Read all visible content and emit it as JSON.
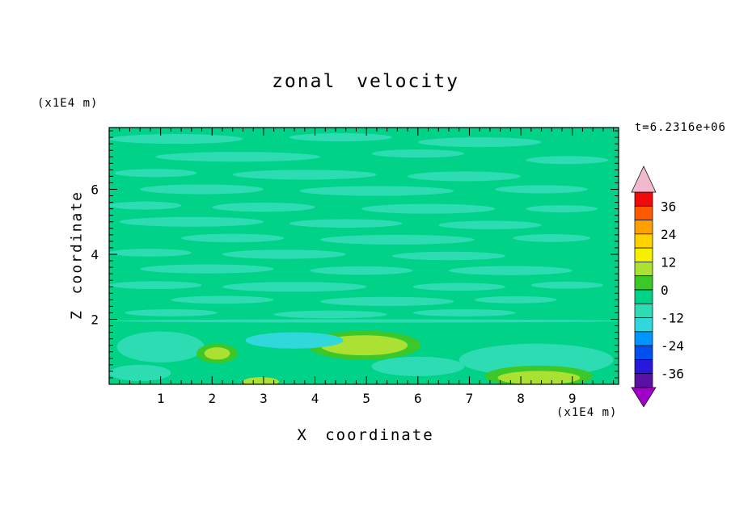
{
  "page": {
    "background": "#FFFFFF"
  },
  "chart_data": {
    "type": "filled_contour",
    "title": "zonal velocity",
    "timestamp": "t=6.2316e+06",
    "xlabel": "X coordinate",
    "ylabel": "Z coordinate",
    "x_axis_unit": "(x1E4 m)",
    "y_axis_unit": "(x1E4 m)",
    "x_range": [
      0,
      9.9
    ],
    "z_range": [
      0,
      7.9
    ],
    "x_major_ticks": [
      1,
      2,
      3,
      4,
      5,
      6,
      7,
      8,
      9
    ],
    "z_major_ticks": [
      2,
      4,
      6
    ],
    "minor_tick_step": 0.2,
    "colorbar": {
      "labels": [
        36,
        24,
        12,
        0,
        -12,
        -24,
        -36
      ],
      "level_min": -42,
      "level_max": 42,
      "level_step": 6,
      "over_color": "#F2B9CE",
      "under_color": "#A000C8",
      "segments": [
        {
          "from": 36,
          "to": 42,
          "color": "#F00A0A"
        },
        {
          "from": 30,
          "to": 36,
          "color": "#FF5A00"
        },
        {
          "from": 24,
          "to": 30,
          "color": "#FFA000"
        },
        {
          "from": 18,
          "to": 24,
          "color": "#FFD200"
        },
        {
          "from": 12,
          "to": 18,
          "color": "#F5F000"
        },
        {
          "from": 6,
          "to": 12,
          "color": "#AAE132"
        },
        {
          "from": 0,
          "to": 6,
          "color": "#3CC828"
        },
        {
          "from": -6,
          "to": 0,
          "color": "#00D287"
        },
        {
          "from": -12,
          "to": -6,
          "color": "#2EDCB4"
        },
        {
          "from": -18,
          "to": -12,
          "color": "#30D8DC"
        },
        {
          "from": -24,
          "to": -18,
          "color": "#0096FF"
        },
        {
          "from": -30,
          "to": -24,
          "color": "#0050F0"
        },
        {
          "from": -36,
          "to": -30,
          "color": "#2818DC"
        },
        {
          "from": -42,
          "to": -36,
          "color": "#5A0FA5"
        }
      ]
    },
    "field": {
      "base_value_band": "-6 to 0",
      "base_color": "#00D287",
      "features": [
        {
          "value_band": "-12 to -6",
          "color": "#2EDCB4",
          "shape": "ellipse",
          "blobs": [
            [
              1.3,
              7.55,
              2.6,
              0.3
            ],
            [
              4.5,
              7.6,
              2.0,
              0.25
            ],
            [
              7.2,
              7.45,
              2.4,
              0.3
            ],
            [
              2.5,
              7.0,
              3.2,
              0.3
            ],
            [
              6.0,
              7.1,
              1.8,
              0.25
            ],
            [
              8.9,
              6.9,
              1.6,
              0.25
            ],
            [
              0.9,
              6.5,
              1.6,
              0.25
            ],
            [
              3.8,
              6.45,
              2.8,
              0.3
            ],
            [
              6.9,
              6.4,
              2.2,
              0.3
            ],
            [
              1.8,
              6.0,
              2.4,
              0.3
            ],
            [
              5.2,
              5.95,
              3.0,
              0.3
            ],
            [
              8.4,
              6.0,
              1.8,
              0.25
            ],
            [
              0.7,
              5.5,
              1.4,
              0.25
            ],
            [
              3.0,
              5.45,
              2.0,
              0.28
            ],
            [
              6.2,
              5.4,
              2.6,
              0.3
            ],
            [
              8.8,
              5.4,
              1.4,
              0.22
            ],
            [
              1.6,
              5.0,
              2.8,
              0.3
            ],
            [
              4.6,
              4.95,
              2.2,
              0.26
            ],
            [
              7.4,
              4.9,
              2.0,
              0.26
            ],
            [
              2.4,
              4.5,
              2.0,
              0.26
            ],
            [
              5.6,
              4.45,
              3.0,
              0.3
            ],
            [
              8.6,
              4.5,
              1.5,
              0.24
            ],
            [
              0.8,
              4.05,
              1.6,
              0.24
            ],
            [
              3.4,
              4.0,
              2.4,
              0.28
            ],
            [
              6.6,
              3.95,
              2.2,
              0.26
            ],
            [
              1.9,
              3.55,
              2.6,
              0.28
            ],
            [
              4.9,
              3.5,
              2.0,
              0.26
            ],
            [
              7.8,
              3.5,
              2.4,
              0.28
            ],
            [
              0.9,
              3.05,
              1.8,
              0.24
            ],
            [
              3.6,
              3.0,
              2.8,
              0.3
            ],
            [
              6.8,
              3.0,
              1.8,
              0.24
            ],
            [
              8.9,
              3.05,
              1.4,
              0.22
            ],
            [
              2.2,
              2.6,
              2.0,
              0.24
            ],
            [
              5.4,
              2.55,
              2.6,
              0.28
            ],
            [
              7.9,
              2.6,
              1.6,
              0.22
            ],
            [
              1.2,
              2.2,
              1.8,
              0.22
            ],
            [
              4.3,
              2.15,
              2.2,
              0.24
            ],
            [
              6.9,
              2.2,
              2.0,
              0.22
            ],
            [
              5.0,
              1.95,
              9.9,
              0.1
            ],
            [
              1.0,
              1.15,
              1.7,
              0.95
            ],
            [
              8.3,
              0.75,
              3.0,
              1.0
            ],
            [
              6.0,
              0.55,
              1.8,
              0.6
            ],
            [
              0.6,
              0.35,
              1.2,
              0.5
            ]
          ]
        },
        {
          "value_band": "0 to 6",
          "color": "#3CC828",
          "shape": "ellipse",
          "blobs": [
            [
              4.95,
              1.2,
              2.2,
              0.9
            ],
            [
              8.35,
              0.25,
              2.1,
              0.65
            ],
            [
              2.1,
              0.95,
              0.8,
              0.6
            ]
          ]
        },
        {
          "value_band": "6 to 12",
          "color": "#AAE132",
          "shape": "ellipse",
          "blobs": [
            [
              2.1,
              0.95,
              0.5,
              0.38
            ],
            [
              4.95,
              1.2,
              1.7,
              0.62
            ],
            [
              8.35,
              0.2,
              1.6,
              0.42
            ],
            [
              2.95,
              0.08,
              0.7,
              0.28
            ]
          ]
        },
        {
          "value_band": "-18 to -12",
          "color": "#30D8DC",
          "shape": "ellipse",
          "blobs": [
            [
              3.6,
              1.35,
              1.9,
              0.5
            ]
          ]
        }
      ]
    }
  }
}
